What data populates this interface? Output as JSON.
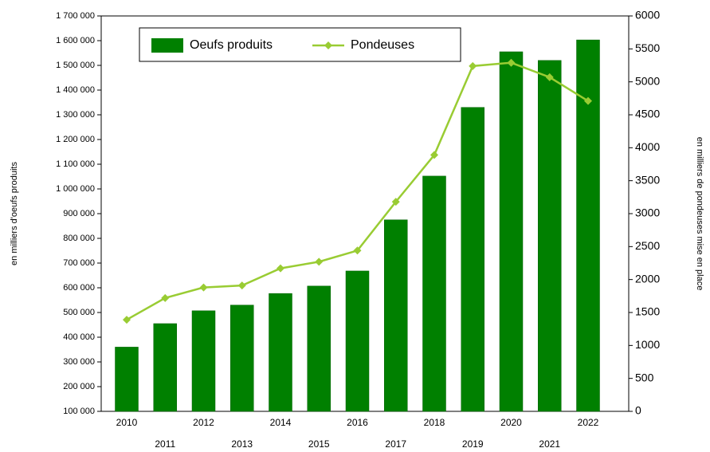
{
  "chart_data": {
    "type": "bar_line",
    "y_label": "en milliers d'oeufs produits",
    "y2_label": "en milliers de pondeuses mise en place",
    "categories": [
      "2010",
      "2011",
      "2012",
      "2013",
      "2014",
      "2015",
      "2016",
      "2017",
      "2018",
      "2019",
      "2020",
      "2021",
      "2022"
    ],
    "series": [
      {
        "name": "Oeufs produits",
        "color": "#008000",
        "kind": "bar",
        "axis": "y",
        "values": [
          360000,
          455000,
          507000,
          530000,
          577000,
          607000,
          668000,
          875000,
          1052000,
          1330000,
          1555000,
          1520000,
          1603000
        ]
      },
      {
        "name": "Pondeuses",
        "color": "#99cc33",
        "kind": "line",
        "axis": "y2",
        "values": [
          1390,
          1720,
          1880,
          1910,
          2170,
          2270,
          2440,
          3180,
          3890,
          5240,
          5290,
          5070,
          4710
        ]
      }
    ],
    "ylim": [
      100000,
      1700000
    ],
    "yticks": [
      {
        "value": 100000,
        "label": "100 000"
      },
      {
        "value": 200000,
        "label": "200 000"
      },
      {
        "value": 300000,
        "label": "300 000"
      },
      {
        "value": 400000,
        "label": "400 000"
      },
      {
        "value": 500000,
        "label": "500 000"
      },
      {
        "value": 600000,
        "label": "600 000"
      },
      {
        "value": 700000,
        "label": "700 000"
      },
      {
        "value": 800000,
        "label": "800 000"
      },
      {
        "value": 900000,
        "label": "900 000"
      },
      {
        "value": 1000000,
        "label": "1 000 000"
      },
      {
        "value": 1100000,
        "label": "1 100 000"
      },
      {
        "value": 1200000,
        "label": "1 200 000"
      },
      {
        "value": 1300000,
        "label": "1 300 000"
      },
      {
        "value": 1400000,
        "label": "1 400 000"
      },
      {
        "value": 1500000,
        "label": "1 500 000"
      },
      {
        "value": 1600000,
        "label": "1 600 000"
      },
      {
        "value": 1700000,
        "label": "1 700 000"
      }
    ],
    "y2lim": [
      0,
      6000
    ],
    "y2ticks": [
      0,
      500,
      1000,
      1500,
      2000,
      2500,
      3000,
      3500,
      4000,
      4500,
      5000,
      5500,
      6000
    ],
    "legend": "top"
  }
}
